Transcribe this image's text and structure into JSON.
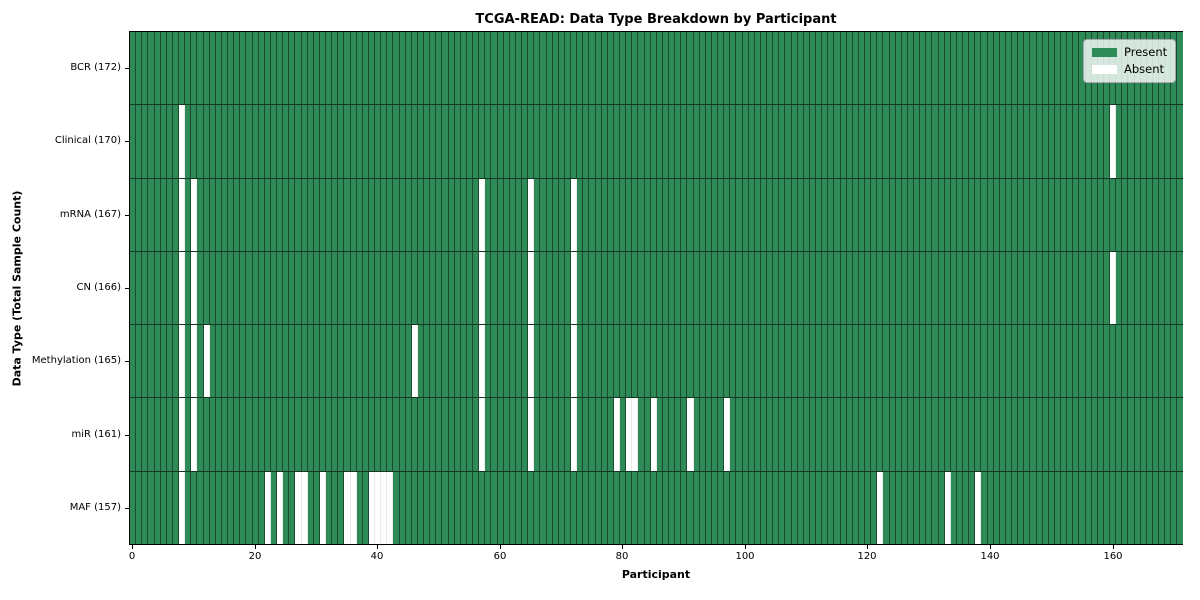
{
  "chart_data": {
    "type": "heatmap",
    "title": "TCGA-READ: Data Type Breakdown by Participant",
    "xlabel": "Participant",
    "ylabel": "Data Type (Total Sample Count)",
    "x_ticks": [
      0,
      20,
      40,
      60,
      80,
      100,
      120,
      140,
      160
    ],
    "n_participants": 172,
    "xlim": [
      -0.5,
      171.5
    ],
    "grid": "per-cell edges",
    "legend_position": "upper right",
    "present_color": "#2e8b57",
    "absent_color": "#ffffff",
    "legend": [
      {
        "label": "Present",
        "color": "#2e8b57"
      },
      {
        "label": "Absent",
        "color": "#ffffff"
      }
    ],
    "rows": [
      {
        "label": "BCR (172)",
        "data_type": "BCR",
        "count": 172,
        "absent": []
      },
      {
        "label": "Clinical (170)",
        "data_type": "Clinical",
        "count": 170,
        "absent": [
          8,
          160
        ]
      },
      {
        "label": "mRNA (167)",
        "data_type": "mRNA",
        "count": 167,
        "absent": [
          8,
          10,
          57,
          65,
          72
        ]
      },
      {
        "label": "CN (166)",
        "data_type": "CN",
        "count": 166,
        "absent": [
          8,
          10,
          57,
          65,
          72,
          160
        ]
      },
      {
        "label": "Methylation (165)",
        "data_type": "Methylation",
        "count": 165,
        "absent": [
          8,
          10,
          12,
          46,
          57,
          65,
          72
        ]
      },
      {
        "label": "miR (161)",
        "data_type": "miR",
        "count": 161,
        "absent": [
          8,
          10,
          57,
          65,
          72,
          79,
          81,
          82,
          85,
          91,
          97
        ]
      },
      {
        "label": "MAF (157)",
        "data_type": "MAF",
        "count": 157,
        "absent": [
          8,
          22,
          24,
          27,
          28,
          31,
          35,
          36,
          39,
          40,
          41,
          42,
          122,
          133,
          138
        ]
      }
    ]
  }
}
